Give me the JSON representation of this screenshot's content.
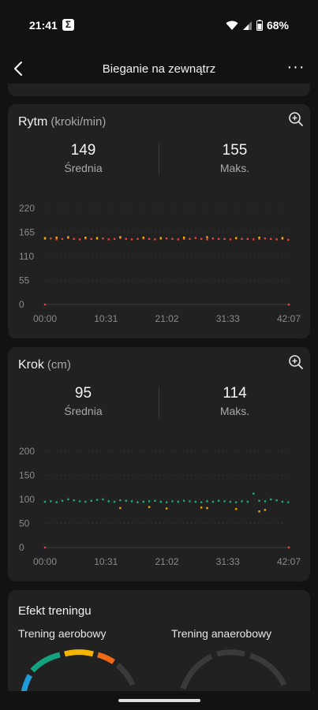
{
  "status": {
    "time": "21:41",
    "app_icon_letter": "Σ",
    "battery": "68%"
  },
  "appbar": {
    "title": "Bieganie na zewnątrz",
    "more_glyph": "···"
  },
  "cadence": {
    "title": "Rytm",
    "unit": "(kroki/min)",
    "avg_value": "149",
    "avg_label": "Średnia",
    "max_value": "155",
    "max_label": "Maks."
  },
  "stride": {
    "title": "Krok",
    "unit": "(cm)",
    "avg_value": "95",
    "avg_label": "Średnia",
    "max_value": "114",
    "max_label": "Maks."
  },
  "effect": {
    "title": "Efekt treningu",
    "aerobic_label": "Trening aerobowy",
    "anaerobic_label": "Trening anaerobowy"
  },
  "colors": {
    "background": "#121212",
    "card": "#212121",
    "cadence_main": "#e8453c",
    "cadence_accent": "#f4b400",
    "stride_main": "#1faa7d",
    "stride_accent": "#f4a300",
    "gauge_teal": "#14a37f",
    "gauge_yellow": "#f4b400",
    "gauge_orange": "#ef6a14",
    "gauge_blue": "#1f9bd8",
    "gauge_gray": "#3a3a3a"
  },
  "chart_data": [
    {
      "type": "scatter",
      "series": [
        {
          "name": "",
          "color": "#e8453c",
          "x": [
            0,
            1,
            2,
            3,
            4,
            5,
            6,
            7,
            8,
            9,
            10,
            11,
            12,
            13,
            14,
            15,
            16,
            17,
            18,
            19,
            20,
            21,
            22,
            23,
            24,
            25,
            26,
            27,
            28,
            29,
            30,
            31,
            32,
            33,
            34,
            35,
            36,
            37,
            38,
            39,
            40,
            41,
            42
          ],
          "y": [
            150,
            151,
            149,
            150,
            152,
            150,
            149,
            151,
            150,
            150,
            151,
            149,
            150,
            152,
            150,
            149,
            150,
            151,
            150,
            149,
            150,
            151,
            150,
            149,
            150,
            150,
            152,
            150,
            149,
            151,
            150,
            150,
            149,
            151,
            150,
            150,
            149,
            150,
            151,
            150,
            149,
            150,
            148
          ]
        },
        {
          "name": "",
          "color": "#f4b400",
          "x": [
            0,
            2,
            4,
            7,
            9,
            13,
            17,
            20,
            24,
            28,
            33,
            37,
            41
          ],
          "y": [
            152,
            153,
            154,
            153,
            152,
            154,
            153,
            152,
            153,
            154,
            152,
            153,
            152
          ]
        }
      ],
      "xticks": [
        "00:00",
        "10:31",
        "21:02",
        "31:33",
        "42:07"
      ],
      "yticks": [
        0,
        55,
        110,
        165,
        220
      ],
      "ylim": [
        0,
        220
      ],
      "xlim": [
        0,
        42.1
      ],
      "grid": true
    },
    {
      "type": "scatter",
      "series": [
        {
          "name": "",
          "color": "#1faa7d",
          "x": [
            0,
            1,
            2,
            3,
            4,
            5,
            6,
            7,
            8,
            9,
            10,
            11,
            12,
            13,
            14,
            15,
            16,
            17,
            18,
            19,
            20,
            21,
            22,
            23,
            24,
            25,
            26,
            27,
            28,
            29,
            30,
            31,
            32,
            33,
            34,
            35,
            36,
            37,
            38,
            39,
            40,
            41,
            42
          ],
          "y": [
            95,
            96,
            94,
            97,
            100,
            98,
            96,
            95,
            97,
            99,
            100,
            96,
            95,
            98,
            97,
            96,
            94,
            95,
            96,
            97,
            95,
            94,
            96,
            95,
            97,
            96,
            95,
            94,
            96,
            95,
            97,
            96,
            95,
            94,
            96,
            95,
            112,
            97,
            96,
            100,
            98,
            95,
            94
          ]
        },
        {
          "name": "",
          "color": "#f4a300",
          "x": [
            13,
            18,
            21,
            27,
            28,
            33,
            37,
            38
          ],
          "y": [
            82,
            84,
            81,
            83,
            82,
            80,
            75,
            78
          ]
        }
      ],
      "xticks": [
        "00:00",
        "10:31",
        "21:02",
        "31:33",
        "42:07"
      ],
      "yticks": [
        0,
        50,
        100,
        150,
        200
      ],
      "ylim": [
        0,
        200
      ],
      "xlim": [
        0,
        42.1
      ],
      "grid": true
    }
  ]
}
